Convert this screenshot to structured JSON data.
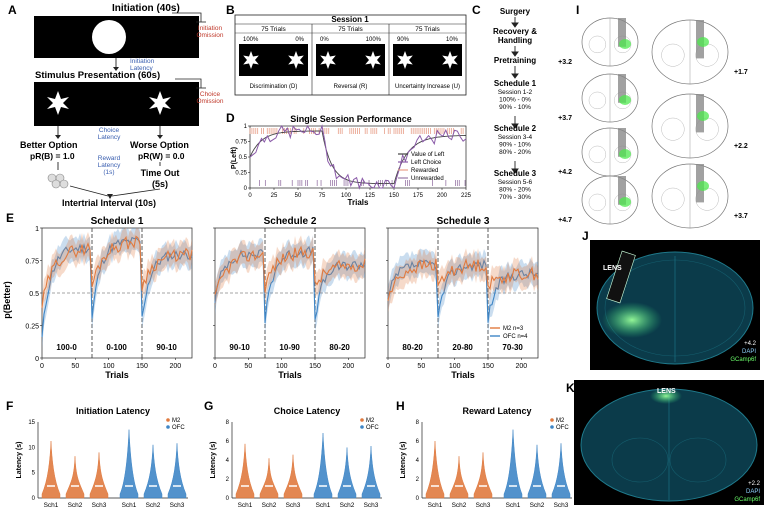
{
  "panels": {
    "A": "A",
    "B": "B",
    "C": "C",
    "D": "D",
    "E": "E",
    "F": "F",
    "G": "G",
    "H": "H",
    "I": "I",
    "J": "J",
    "K": "K"
  },
  "A": {
    "initiation": "Initiation (40s)",
    "initiation_omission": [
      "Initiation",
      "Omission"
    ],
    "initiation_latency": [
      "Initiation",
      "Latency"
    ],
    "stimulus": "Stimulus Presentation (60s)",
    "choice_omission": [
      "Choice",
      "Omission"
    ],
    "choice_latency": [
      "Choice",
      "Latency"
    ],
    "better": "Better Option",
    "better_p": "pR(B) = 1.0",
    "worse": "Worse Option",
    "worse_p": "pR(W) = 0.0",
    "reward_latency": [
      "Reward",
      "Latency",
      "(1s)"
    ],
    "timeout": [
      "Time Out",
      "(5s)"
    ],
    "iti": "Intertrial Interval (10s)"
  },
  "B": {
    "title": "Session 1",
    "blocks": [
      {
        "trials": "75 Trials",
        "left": "100%",
        "right": "0%",
        "label": "Discrimination (D)"
      },
      {
        "trials": "75 Trials",
        "left": "0%",
        "right": "100%",
        "label": "Reversal (R)"
      },
      {
        "trials": "75 Trials",
        "left": "90%",
        "right": "10%",
        "label": "Uncertainty Increase (U)"
      }
    ]
  },
  "C": {
    "steps": [
      "Surgery",
      "Recovery &",
      "Handling",
      "Pretraining"
    ],
    "schedules": [
      {
        "name": "Schedule 1",
        "lines": [
          "Session 1-2",
          "100% - 0%",
          "90% - 10%"
        ]
      },
      {
        "name": "Schedule 2",
        "lines": [
          "Session 3-4",
          "90% - 10%",
          "80% - 20%"
        ]
      },
      {
        "name": "Schedule 3",
        "lines": [
          "Session 5-6",
          "80% - 20%",
          "70% - 30%"
        ]
      }
    ]
  },
  "D": {
    "title": "Single Session Performance",
    "ylabel": "P(Left)",
    "xlabel": "Trials",
    "xticks": [
      "0",
      "25",
      "50",
      "75",
      "100",
      "125",
      "150",
      "175",
      "200",
      "225"
    ],
    "yticks": [
      "0",
      "0.25",
      "0.5",
      "0.75",
      "1"
    ],
    "legend": [
      "Value of Left",
      "Left Choice",
      "Rewarded",
      "Unrewarded"
    ]
  },
  "E": {
    "ylabel": "p(Better)",
    "xlabel": "Trials",
    "yticks": [
      "0",
      "0.25",
      "0.5",
      "0.75",
      "1"
    ],
    "xticks": [
      "0",
      "50",
      "100",
      "150",
      "200"
    ],
    "legend": [
      "M2 n=3",
      "OFC n=4"
    ],
    "plots": [
      {
        "title": "Schedule 1",
        "blocks": [
          "100-0",
          "0-100",
          "90-10"
        ]
      },
      {
        "title": "Schedule 2",
        "blocks": [
          "90-10",
          "10-90",
          "80-20"
        ]
      },
      {
        "title": "Schedule 3",
        "blocks": [
          "80-20",
          "20-80",
          "70-30"
        ]
      }
    ]
  },
  "violins": {
    "ylabel": "Latency (s)",
    "legend": [
      "M2",
      "OFC"
    ],
    "groups": [
      "Sch1",
      "Sch2",
      "Sch3",
      "Sch1",
      "Sch2",
      "Sch3"
    ],
    "plots": [
      {
        "title": "Initiation Latency",
        "yticks": [
          "0",
          "5",
          "10",
          "15"
        ]
      },
      {
        "title": "Choice Latency",
        "yticks": [
          "0",
          "2",
          "4",
          "6",
          "8"
        ]
      },
      {
        "title": "Reward Latency",
        "yticks": [
          "0",
          "2",
          "4",
          "6",
          "8"
        ]
      }
    ]
  },
  "I": {
    "levels_left": [
      "+3.2",
      "+3.7",
      "+4.2",
      "+4.7"
    ],
    "levels_right": [
      "+1.7",
      "+2.2",
      "+3.7"
    ]
  },
  "J": {
    "lens": "LENS",
    "level": "+4.2",
    "dapi": "DAPI",
    "gcamp": "GCamp6f"
  },
  "K": {
    "lens": "LENS",
    "level": "+2.2",
    "dapi": "DAPI",
    "gcamp": "GCamp6f"
  },
  "colors": {
    "m2": "#e07a3f",
    "ofc": "#3f86c6",
    "omission": "#c0392b",
    "latency": "#3a5fb0",
    "rewarded": "#e8a08a",
    "unrewarded": "#9a7aa8"
  }
}
